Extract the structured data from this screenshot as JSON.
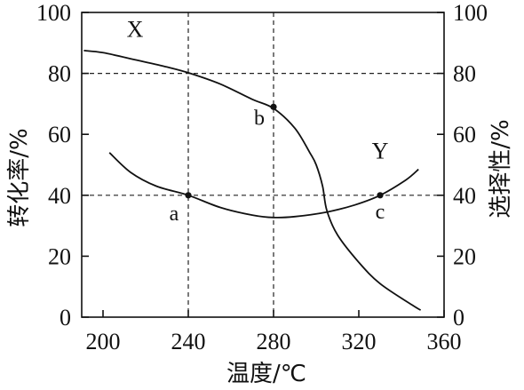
{
  "chart_data": {
    "type": "line",
    "xlabel": "温度/℃",
    "ylabel_left": "转化率/%",
    "ylabel_right": "选择性/%",
    "xlim": [
      190,
      360
    ],
    "ylim": [
      0,
      100
    ],
    "x_ticks": [
      "200",
      "240",
      "280",
      "320",
      "360"
    ],
    "y_ticks": [
      "0",
      "20",
      "40",
      "60",
      "80",
      "100"
    ],
    "y_ticks_right": [
      "0",
      "20",
      "40",
      "60",
      "80",
      "100"
    ],
    "grid": "dashed guide lines at x=240, x=280, y=40, y=80",
    "series": [
      {
        "name": "X",
        "axis": "left",
        "points": [
          [
            191,
            87.5
          ],
          [
            200,
            86.8
          ],
          [
            215,
            84.5
          ],
          [
            230,
            82.1
          ],
          [
            240,
            80.2
          ],
          [
            255,
            76.5
          ],
          [
            270,
            71.5
          ],
          [
            280,
            68.5
          ],
          [
            290,
            62
          ],
          [
            297,
            54
          ],
          [
            300,
            50
          ],
          [
            303,
            43
          ],
          [
            305,
            35
          ],
          [
            310,
            27
          ],
          [
            320,
            18
          ],
          [
            330,
            11
          ],
          [
            345,
            4
          ],
          [
            349,
            2.3
          ]
        ]
      },
      {
        "name": "Y",
        "axis": "right",
        "points": [
          [
            203,
            54
          ],
          [
            213,
            47.5
          ],
          [
            225,
            43
          ],
          [
            240,
            40
          ],
          [
            255,
            36
          ],
          [
            270,
            33.5
          ],
          [
            280,
            32.7
          ],
          [
            290,
            33
          ],
          [
            305,
            34.5
          ],
          [
            318,
            36.8
          ],
          [
            330,
            40
          ],
          [
            342,
            45
          ],
          [
            348,
            48.5
          ]
        ]
      }
    ],
    "marked_points": [
      {
        "label": "a",
        "x": 240,
        "y": 40,
        "series": "Y"
      },
      {
        "label": "b",
        "x": 280,
        "y": 69,
        "series": "X"
      },
      {
        "label": "c",
        "x": 330,
        "y": 40,
        "series": "Y"
      }
    ]
  }
}
